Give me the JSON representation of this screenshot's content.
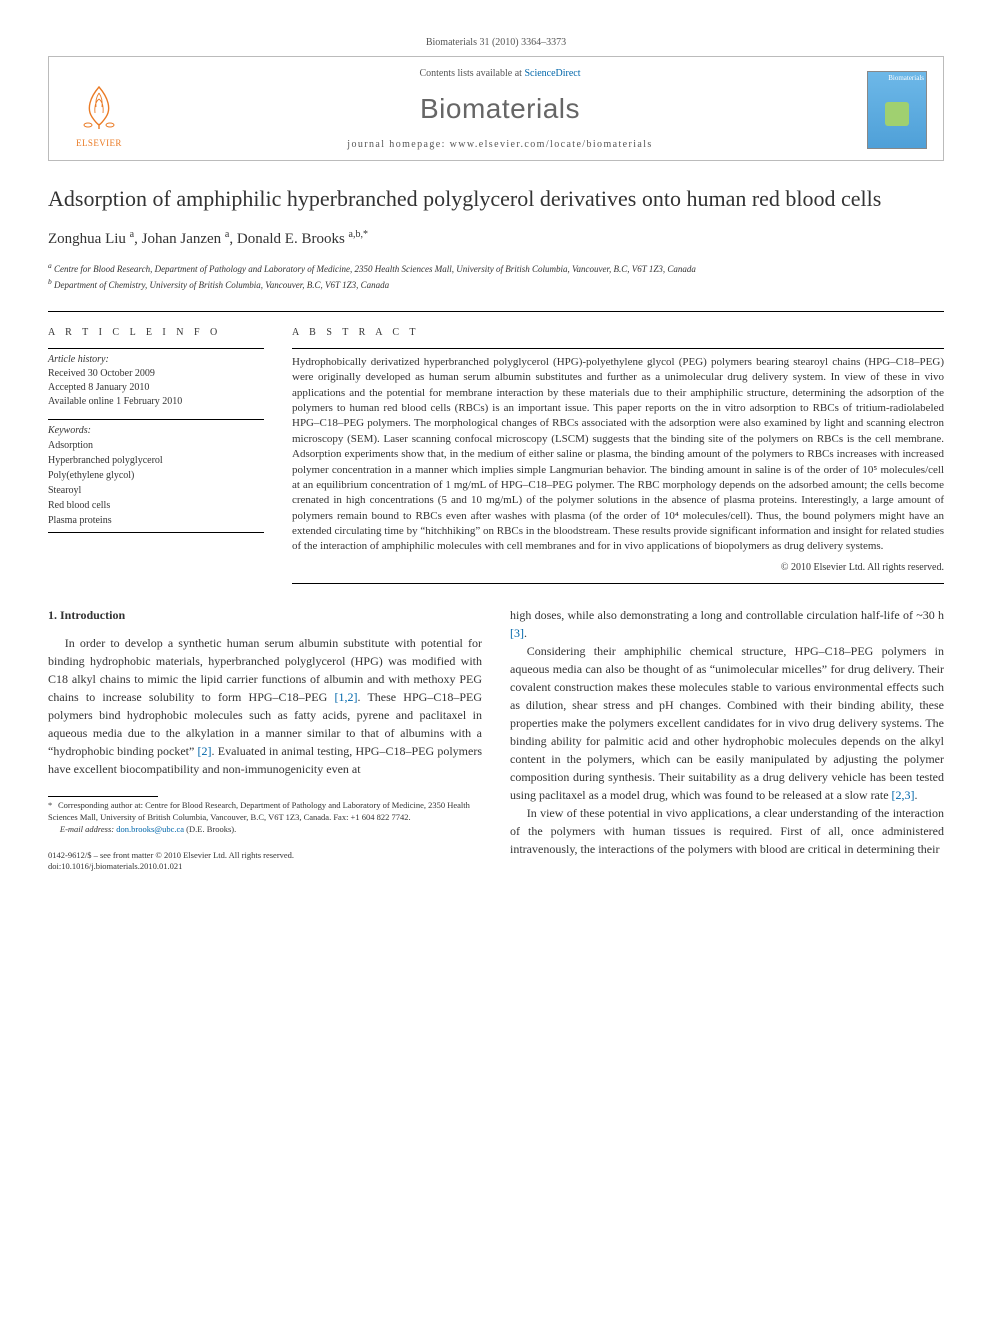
{
  "citation": "Biomaterials 31 (2010) 3364–3373",
  "publisher": {
    "name": "ELSEVIER"
  },
  "journal_box": {
    "contents_prefix": "Contents lists available at ",
    "contents_link": "ScienceDirect",
    "journal_name": "Biomaterials",
    "homepage_label": "journal homepage: www.elsevier.com/locate/biomaterials",
    "cover_text": "Biomaterials"
  },
  "article": {
    "title": "Adsorption of amphiphilic hyperbranched polyglycerol derivatives onto human red blood cells",
    "authors_html": "Zonghua Liu <sup>a</sup>, Johan Janzen <sup>a</sup>, Donald E. Brooks <sup>a,b,*</sup>",
    "affiliations": {
      "a": "Centre for Blood Research, Department of Pathology and Laboratory of Medicine, 2350 Health Sciences Mall, University of British Columbia, Vancouver, B.C, V6T 1Z3, Canada",
      "b": "Department of Chemistry, University of British Columbia, Vancouver, B.C, V6T 1Z3, Canada"
    }
  },
  "info": {
    "label": "A R T I C L E   I N F O",
    "history_heading": "Article history:",
    "received": "Received 30 October 2009",
    "accepted": "Accepted 8 January 2010",
    "available": "Available online 1 February 2010",
    "keywords_heading": "Keywords:",
    "keywords": [
      "Adsorption",
      "Hyperbranched polyglycerol",
      "Poly(ethylene glycol)",
      "Stearoyl",
      "Red blood cells",
      "Plasma proteins"
    ]
  },
  "abstract": {
    "label": "A B S T R A C T",
    "text": "Hydrophobically derivatized hyperbranched polyglycerol (HPG)-polyethylene glycol (PEG) polymers bearing stearoyl chains (HPG–C18–PEG) were originally developed as human serum albumin substitutes and further as a unimolecular drug delivery system. In view of these in vivo applications and the potential for membrane interaction by these materials due to their amphiphilic structure, determining the adsorption of the polymers to human red blood cells (RBCs) is an important issue. This paper reports on the in vitro adsorption to RBCs of tritium-radiolabeled HPG–C18–PEG polymers. The morphological changes of RBCs associated with the adsorption were also examined by light and scanning electron microscopy (SEM). Laser scanning confocal microscopy (LSCM) suggests that the binding site of the polymers on RBCs is the cell membrane. Adsorption experiments show that, in the medium of either saline or plasma, the binding amount of the polymers to RBCs increases with increased polymer concentration in a manner which implies simple Langmurian behavior. The binding amount in saline is of the order of 10⁵ molecules/cell at an equilibrium concentration of 1 mg/mL of HPG–C18–PEG polymer. The RBC morphology depends on the adsorbed amount; the cells become crenated in high concentrations (5 and 10 mg/mL) of the polymer solutions in the absence of plasma proteins. Interestingly, a large amount of polymers remain bound to RBCs even after washes with plasma (of the order of 10⁴ molecules/cell). Thus, the bound polymers might have an extended circulating time by “hitchhiking” on RBCs in the bloodstream. These results provide significant information and insight for related studies of the interaction of amphiphilic molecules with cell membranes and for in vivo applications of biopolymers as drug delivery systems.",
    "copyright": "© 2010 Elsevier Ltd. All rights reserved."
  },
  "body": {
    "section_heading": "1. Introduction",
    "left_paragraphs": [
      "In order to develop a synthetic human serum albumin substitute with potential for binding hydrophobic materials, hyperbranched polyglycerol (HPG) was modified with C18 alkyl chains to mimic the lipid carrier functions of albumin and with methoxy PEG chains to increase solubility to form HPG–C18–PEG [1,2]. These HPG–C18–PEG polymers bind hydrophobic molecules such as fatty acids, pyrene and paclitaxel in aqueous media due to the alkylation in a manner similar to that of albumins with a “hydrophobic binding pocket” [2]. Evaluated in animal testing, HPG–C18–PEG polymers have excellent biocompatibility and non-immunogenicity even at"
    ],
    "right_paragraphs": [
      "high doses, while also demonstrating a long and controllable circulation half-life of ~30 h [3].",
      "Considering their amphiphilic chemical structure, HPG–C18–PEG polymers in aqueous media can also be thought of as “unimolecular micelles” for drug delivery. Their covalent construction makes these molecules stable to various environmental effects such as dilution, shear stress and pH changes. Combined with their binding ability, these properties make the polymers excellent candidates for in vivo drug delivery systems. The binding ability for palmitic acid and other hydrophobic molecules depends on the alkyl content in the polymers, which can be easily manipulated by adjusting the polymer composition during synthesis. Their suitability as a drug delivery vehicle has been tested using paclitaxel as a model drug, which was found to be released at a slow rate [2,3].",
      "In view of these potential in vivo applications, a clear understanding of the interaction of the polymers with human tissues is required. First of all, once administered intravenously, the interactions of the polymers with blood are critical in determining their"
    ]
  },
  "footnote": {
    "corr": "Corresponding author at: Centre for Blood Research, Department of Pathology and Laboratory of Medicine, 2350 Health Sciences Mall, University of British Columbia, Vancouver, B.C, V6T 1Z3, Canada. Fax: +1 604 822 7742.",
    "email_label": "E-mail address:",
    "email": "don.brooks@ubc.ca",
    "email_who": "(D.E. Brooks)."
  },
  "footer": {
    "line1": "0142-9612/$ – see front matter © 2010 Elsevier Ltd. All rights reserved.",
    "doi": "doi:10.1016/j.biomaterials.2010.01.021"
  },
  "colors": {
    "elsevier_orange": "#ea7a24",
    "link_blue": "#0066aa",
    "rule": "#000000"
  }
}
